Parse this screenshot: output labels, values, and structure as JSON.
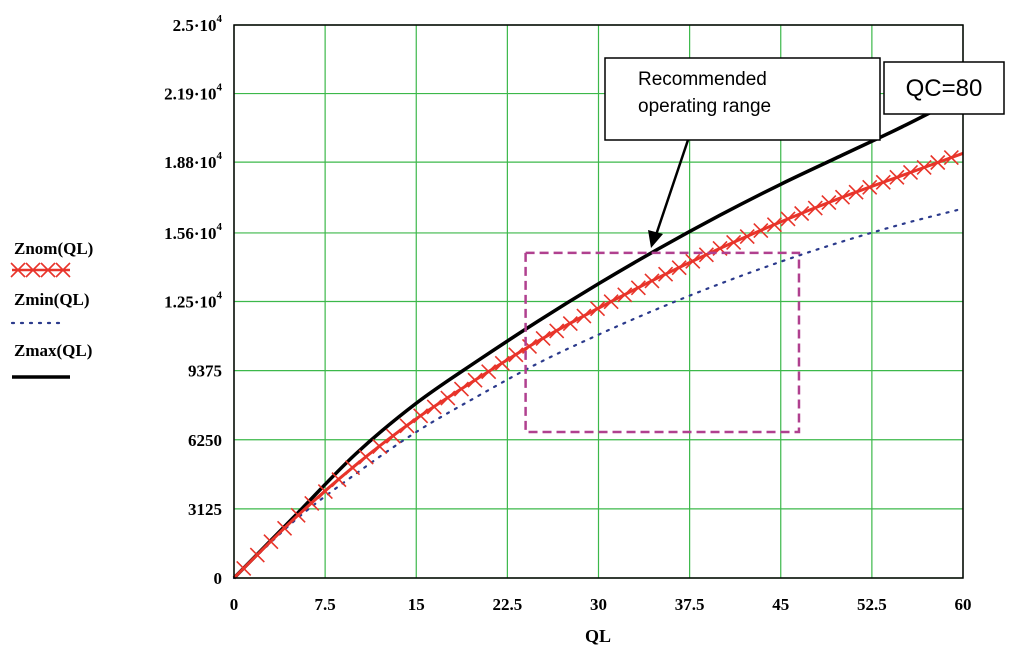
{
  "chart_data": {
    "type": "line",
    "xlabel": "QL",
    "x_ticks": [
      "0",
      "7.5",
      "15",
      "22.5",
      "30",
      "37.5",
      "45",
      "52.5",
      "60"
    ],
    "xlim": [
      0,
      60
    ],
    "y_ticks": [
      {
        "value": 0,
        "base": "0",
        "exp": ""
      },
      {
        "value": 3125,
        "base": "3125",
        "exp": ""
      },
      {
        "value": 6250,
        "base": "6250",
        "exp": ""
      },
      {
        "value": 9375,
        "base": "9375",
        "exp": ""
      },
      {
        "value": 12500,
        "base": "1.25·10",
        "exp": "4"
      },
      {
        "value": 15600,
        "base": "1.56·10",
        "exp": "4"
      },
      {
        "value": 18800,
        "base": "1.88·10",
        "exp": "4"
      },
      {
        "value": 21900,
        "base": "2.19·10",
        "exp": "4"
      },
      {
        "value": 25000,
        "base": "2.5·10",
        "exp": "4"
      }
    ],
    "ylim": [
      0,
      25000
    ],
    "grid": true,
    "legend_position": "left",
    "series": [
      {
        "name": "Znom(QL)",
        "style": "red-crosses",
        "color": "#e8342a",
        "x": [
          0,
          5,
          10,
          15,
          20,
          25,
          30,
          35,
          40,
          45,
          50,
          55,
          60
        ],
        "y": [
          0,
          2700,
          5100,
          7200,
          9000,
          10700,
          12200,
          13600,
          14900,
          16100,
          17200,
          18200,
          19200
        ]
      },
      {
        "name": "Zmin(QL)",
        "style": "dotted",
        "color": "#2b3a8c",
        "x": [
          0,
          5,
          10,
          15,
          20,
          25,
          30,
          35,
          40,
          45,
          50,
          55,
          60
        ],
        "y": [
          0,
          2600,
          4700,
          6600,
          8200,
          9700,
          11000,
          12200,
          13300,
          14300,
          15200,
          16000,
          16700
        ]
      },
      {
        "name": "Zmax(QL)",
        "style": "solid",
        "color": "#000000",
        "x": [
          0,
          5,
          10,
          15,
          20,
          25,
          30,
          35,
          40,
          45,
          50,
          55,
          60
        ],
        "y": [
          0,
          2800,
          5600,
          7900,
          9800,
          11600,
          13300,
          14900,
          16400,
          17800,
          19100,
          20400,
          21800
        ]
      }
    ],
    "annotations": [
      {
        "text_lines": [
          "Recommended",
          "operating range"
        ],
        "box_color": "#b0408f"
      },
      {
        "text": "QC=80"
      }
    ],
    "operating_range": {
      "x": [
        24,
        46.5
      ],
      "y": [
        6600,
        14700
      ]
    }
  },
  "colors": {
    "grid": "#3cb84a",
    "axis": "#000000",
    "range_box": "#b0408f"
  }
}
